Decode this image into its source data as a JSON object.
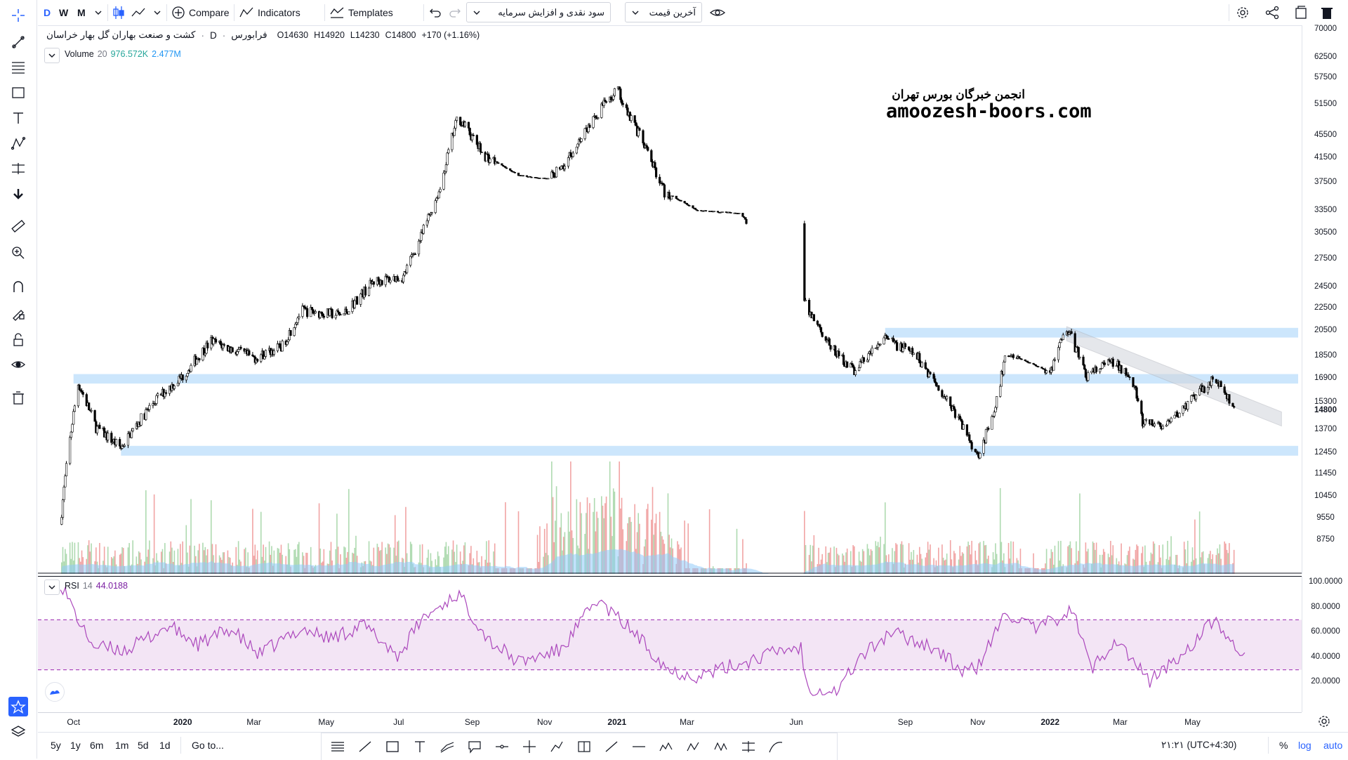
{
  "toolbar": {
    "intervals": [
      "D",
      "W",
      "M"
    ],
    "compare_label": "Compare",
    "indicators_label": "Indicators",
    "templates_label": "Templates",
    "dropdown_dividend": "سود نقدی و افزایش سرمایه",
    "dropdown_price": "آخرین قیمت"
  },
  "legend": {
    "symbol_name": "کشت و صنعت بهاران گل بهار خراسان",
    "interval": "D",
    "exchange": "فرابورس",
    "open_label": "O",
    "open_value": "14630",
    "high_label": "H",
    "high_value": "14920",
    "low_label": "L",
    "low_value": "14230",
    "close_label": "C",
    "close_value": "14800",
    "change": "+170 (+1.16%)",
    "volume_label": "Volume",
    "volume_length": "20",
    "volume_value": "976.572K",
    "volume_ma": "2.477M",
    "rsi_label": "RSI",
    "rsi_length": "14",
    "rsi_value": "44.0188"
  },
  "watermark": {
    "line1": "انجمن خبرگان بورس تهران",
    "line2": "amoozesh-boors.com"
  },
  "price_axis": {
    "labels": [
      "70000",
      "62500",
      "57500",
      "51500",
      "45500",
      "41500",
      "37500",
      "33500",
      "30500",
      "27500",
      "24500",
      "22500",
      "20500",
      "18500",
      "16900",
      "15300",
      "13700",
      "12450",
      "11450",
      "10450",
      "9550",
      "8750"
    ],
    "current_price": "14800"
  },
  "rsi_axis": {
    "labels": [
      "100.0000",
      "80.0000",
      "60.0000",
      "40.0000",
      "20.0000"
    ]
  },
  "time_axis": {
    "labels": [
      "Oct",
      "2020",
      "Mar",
      "May",
      "Jul",
      "Sep",
      "Nov",
      "2021",
      "Mar",
      "Jun",
      "Sep",
      "Nov",
      "2022",
      "Mar",
      "May"
    ]
  },
  "bottom": {
    "ranges": [
      "5y",
      "1y",
      "6m",
      "1m",
      "5d",
      "1d"
    ],
    "goto_label": "Go to...",
    "clock": "۲۱:۲۱ (UTC+4:30)",
    "pct_label": "%",
    "log_label": "log",
    "auto_label": "auto"
  },
  "colors": {
    "accent": "#2962ff",
    "zone": "#bbdefb",
    "rsi_line": "#ab47bc",
    "rsi_band": "#f3e5f5",
    "volume_up": "#a5d6a7",
    "volume_down": "#ef9a9a",
    "volume_ma": "#90caf9"
  },
  "chart_data": {
    "type": "candlestick",
    "x_range": [
      "2019-09",
      "2022-06"
    ],
    "y_scale": "log",
    "price_waypoints": [
      [
        "2019-09-20",
        9300
      ],
      [
        "2019-10-05",
        16500
      ],
      [
        "2019-10-20",
        13800
      ],
      [
        "2019-11-10",
        12700
      ],
      [
        "2019-12-10",
        15500
      ],
      [
        "2020-01-01",
        17000
      ],
      [
        "2020-01-25",
        19600
      ],
      [
        "2020-03-01",
        18300
      ],
      [
        "2020-03-25",
        19200
      ],
      [
        "2020-04-10",
        22200
      ],
      [
        "2020-05-15",
        21800
      ],
      [
        "2020-06-10",
        25000
      ],
      [
        "2020-07-05",
        25500
      ],
      [
        "2020-07-20",
        30000
      ],
      [
        "2020-08-05",
        36500
      ],
      [
        "2020-08-20",
        49000
      ],
      [
        "2020-09-10",
        42000
      ],
      [
        "2020-10-10",
        38500
      ],
      [
        "2020-11-05",
        38000
      ],
      [
        "2020-11-20",
        41000
      ],
      [
        "2020-12-20",
        51000
      ],
      [
        "2021-01-01",
        55000
      ],
      [
        "2021-01-10",
        50000
      ],
      [
        "2021-01-25",
        43000
      ],
      [
        "2021-02-10",
        36000
      ],
      [
        "2021-03-10",
        33400
      ],
      [
        "2021-04-15",
        33000
      ],
      [
        "2021-06-10",
        22500
      ],
      [
        "2021-07-01",
        19000
      ],
      [
        "2021-07-20",
        17400
      ],
      [
        "2021-08-15",
        19800
      ],
      [
        "2021-09-10",
        18500
      ],
      [
        "2021-10-10",
        15000
      ],
      [
        "2021-11-01",
        12300
      ],
      [
        "2021-11-15",
        14500
      ],
      [
        "2021-11-25",
        18700
      ],
      [
        "2022-01-01",
        17300
      ],
      [
        "2022-01-15",
        20700
      ],
      [
        "2022-02-01",
        17000
      ],
      [
        "2022-02-20",
        18000
      ],
      [
        "2022-03-10",
        17200
      ],
      [
        "2022-03-20",
        14000
      ],
      [
        "2022-04-10",
        13900
      ],
      [
        "2022-05-01",
        15500
      ],
      [
        "2022-05-20",
        16900
      ],
      [
        "2022-06-05",
        14800
      ]
    ],
    "rsi_waypoints": [
      [
        "2019-09-20",
        100
      ],
      [
        "2019-10-10",
        60
      ],
      [
        "2019-10-20",
        48
      ],
      [
        "2019-11-15",
        46
      ],
      [
        "2019-12-20",
        65
      ],
      [
        "2020-01-15",
        50
      ],
      [
        "2020-02-10",
        63
      ],
      [
        "2020-03-05",
        42
      ],
      [
        "2020-04-10",
        63
      ],
      [
        "2020-05-05",
        55
      ],
      [
        "2020-06-01",
        66
      ],
      [
        "2020-07-01",
        41
      ],
      [
        "2020-07-20",
        70
      ],
      [
        "2020-08-20",
        91
      ],
      [
        "2020-09-15",
        54
      ],
      [
        "2020-10-10",
        36
      ],
      [
        "2020-11-15",
        46
      ],
      [
        "2020-12-15",
        86
      ],
      [
        "2021-01-15",
        60
      ],
      [
        "2021-02-15",
        29
      ],
      [
        "2021-03-10",
        25
      ],
      [
        "2021-04-15",
        35
      ],
      [
        "2021-05-20",
        46
      ],
      [
        "2021-06-05",
        48
      ],
      [
        "2021-06-10",
        16
      ],
      [
        "2021-07-05",
        13
      ],
      [
        "2021-07-25",
        40
      ],
      [
        "2021-08-20",
        60
      ],
      [
        "2021-09-25",
        48
      ],
      [
        "2021-10-20",
        28
      ],
      [
        "2021-11-01",
        32
      ],
      [
        "2021-11-25",
        76
      ],
      [
        "2021-12-20",
        62
      ],
      [
        "2022-01-20",
        78
      ],
      [
        "2022-02-05",
        30
      ],
      [
        "2022-02-25",
        55
      ],
      [
        "2022-03-25",
        21
      ],
      [
        "2022-04-20",
        40
      ],
      [
        "2022-05-20",
        70
      ],
      [
        "2022-06-01",
        55
      ],
      [
        "2022-06-10",
        36
      ],
      [
        "2022-06-15",
        44
      ]
    ],
    "rsi_upper_band": 70,
    "rsi_lower_band": 30,
    "support_resistance_zones": [
      {
        "from": "2019-10-01",
        "to": "2022-06-30",
        "low": 16500,
        "high": 17150
      },
      {
        "from": "2019-11-10",
        "to": "2022-06-30",
        "low": 12300,
        "high": 12800
      },
      {
        "from": "2021-08-15",
        "to": "2022-06-30",
        "low": 19900,
        "high": 20700
      }
    ],
    "trend_channel": {
      "from": "2022-01-15",
      "to": "2022-07-15",
      "start_high": 20800,
      "end_high": 14700
    }
  }
}
